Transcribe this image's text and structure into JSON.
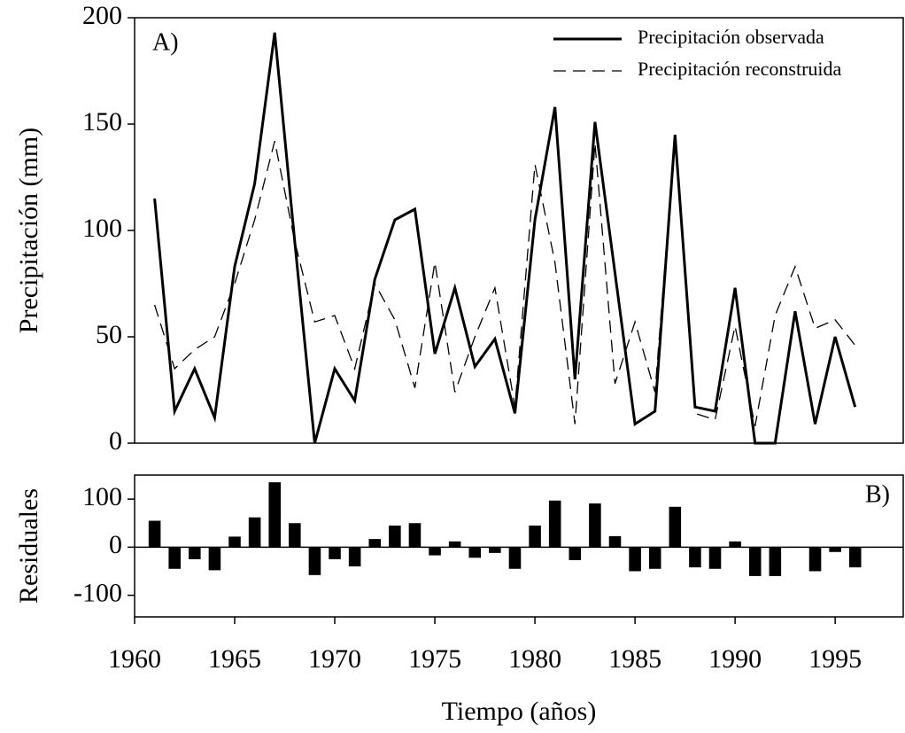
{
  "chart_data": [
    {
      "type": "line",
      "ylabel": "Precipitación (mm)",
      "annotation": "A)",
      "x": [
        1961,
        1962,
        1963,
        1964,
        1965,
        1966,
        1967,
        1968,
        1969,
        1970,
        1971,
        1972,
        1973,
        1974,
        1975,
        1976,
        1977,
        1978,
        1979,
        1980,
        1981,
        1982,
        1983,
        1984,
        1985,
        1986,
        1987,
        1988,
        1989,
        1990,
        1991,
        1992,
        1993,
        1994,
        1995,
        1996
      ],
      "series": [
        {
          "name": "Precipitación observada",
          "color": "#000000",
          "style": "solid",
          "values": [
            115,
            15,
            35,
            12,
            83,
            122,
            193,
            95,
            0,
            35,
            20,
            77,
            105,
            110,
            42,
            73,
            36,
            49,
            14,
            105,
            158,
            30,
            151,
            80,
            9,
            15,
            145,
            17,
            15,
            73,
            0,
            0,
            62,
            9,
            50,
            17
          ]
        },
        {
          "name": "Precipitación reconstruida",
          "color": "#000000",
          "style": "dashed",
          "values": [
            65,
            35,
            44,
            50,
            75,
            105,
            142,
            95,
            57,
            60,
            35,
            75,
            58,
            26,
            85,
            24,
            50,
            73,
            17,
            131,
            85,
            9,
            141,
            28,
            57,
            24,
            145,
            14,
            11,
            55,
            8,
            60,
            83,
            54,
            58,
            46
          ]
        }
      ],
      "xlim": [
        1960,
        1998.4
      ],
      "ylim": [
        0,
        200
      ],
      "yticks": [
        0,
        50,
        100,
        150,
        200
      ],
      "legend": "upper right"
    },
    {
      "type": "bar",
      "ylabel": "Residuales",
      "xlabel": "Tiempo (años)",
      "annotation": "B)",
      "color": "#000000",
      "x": [
        1961,
        1962,
        1963,
        1964,
        1965,
        1966,
        1967,
        1968,
        1969,
        1970,
        1971,
        1972,
        1973,
        1974,
        1975,
        1976,
        1977,
        1978,
        1979,
        1980,
        1981,
        1982,
        1983,
        1984,
        1985,
        1986,
        1987,
        1988,
        1989,
        1990,
        1991,
        1992,
        1993,
        1994,
        1995,
        1996
      ],
      "values": [
        55,
        -45,
        -25,
        -48,
        22,
        62,
        135,
        50,
        -58,
        -25,
        -40,
        17,
        45,
        50,
        -17,
        12,
        -22,
        -12,
        -45,
        45,
        97,
        -27,
        91,
        23,
        -50,
        -45,
        84,
        -42,
        -45,
        12,
        -60,
        -60,
        1,
        -50,
        -10,
        -42
      ],
      "xlim": [
        1960,
        1998.4
      ],
      "xticks": [
        1960,
        1965,
        1970,
        1975,
        1980,
        1985,
        1990,
        1995
      ],
      "ylim": [
        -145,
        150
      ],
      "yticks": [
        -100,
        0,
        100
      ]
    }
  ]
}
